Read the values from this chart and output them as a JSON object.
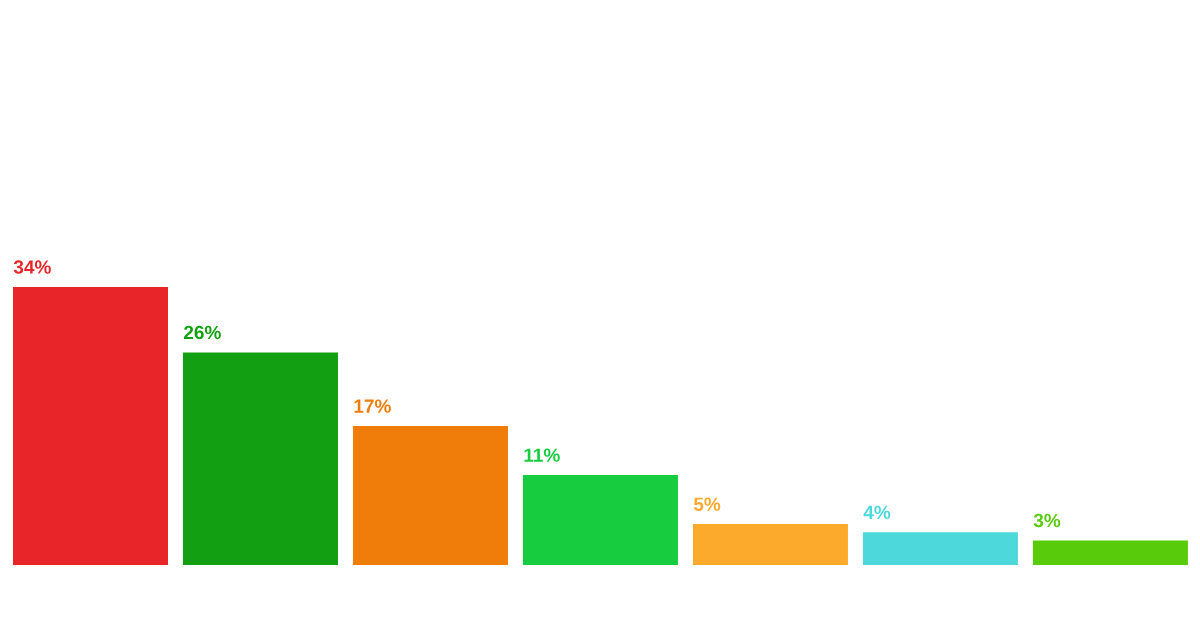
{
  "chart_data": {
    "type": "bar",
    "categories": [
      null,
      null,
      null,
      null,
      null,
      null,
      null
    ],
    "values": [
      34,
      26,
      17,
      11,
      5,
      4,
      3
    ],
    "colors": [
      "#e8262a",
      "#12a012",
      "#f07c0a",
      "#17cc3f",
      "#fbaa2c",
      "#4dd8dc",
      "#58cc0a"
    ],
    "value_labels": [
      "34%",
      "26%",
      "17%",
      "11%",
      "5%",
      "4%",
      "3%"
    ]
  }
}
